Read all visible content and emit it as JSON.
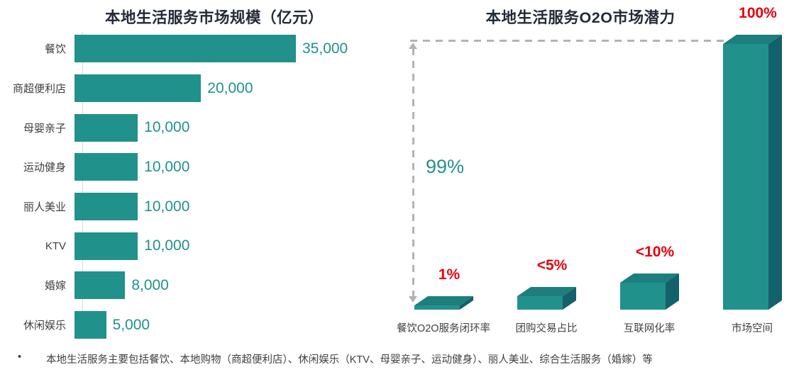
{
  "colors": {
    "teal": "#21918B",
    "teal_top": "#1C7F7E",
    "teal_side": "#13616B",
    "title": "#222B38",
    "label_gray": "#3F3F3F",
    "red": "#E8000D",
    "dash_gray": "#B3B3B3",
    "axis_gray": "#D9D9D9"
  },
  "chart_data": [
    {
      "type": "bar",
      "orientation": "horizontal",
      "title": "本地生活服务市场规模（亿元）",
      "unit": "亿元",
      "categories": [
        "餐饮",
        "商超便利店",
        "母婴亲子",
        "运动健身",
        "丽人美业",
        "KTV",
        "婚嫁",
        "休闲娱乐"
      ],
      "values": [
        35000,
        20000,
        10000,
        10000,
        10000,
        10000,
        8000,
        5000
      ],
      "value_labels": [
        "35,000",
        "20,000",
        "10,000",
        "10,000",
        "10,000",
        "10,000",
        "8,000",
        "5,000"
      ],
      "xlim": [
        0,
        39000
      ],
      "grid": false,
      "legend": "none"
    },
    {
      "type": "bar",
      "style": "3d",
      "title": "本地生活服务O2O市场潜力",
      "categories": [
        "餐饮O2O服务闭环率",
        "团购交易占比",
        "互联网化率",
        "市场空间"
      ],
      "values": [
        1,
        5,
        10,
        100
      ],
      "value_labels": [
        "1%",
        "<5%",
        "<10%",
        "100%"
      ],
      "gap_annotation": "99%",
      "ylim": [
        0,
        100
      ],
      "grid": false,
      "legend": "none"
    }
  ],
  "footnote": {
    "bullet": "•",
    "text": "本地生活服务主要包括餐饮、本地购物（商超便利店）、休闲娱乐（KTV、母婴亲子、运动健身）、丽人美业、综合生活服务（婚嫁）等"
  }
}
